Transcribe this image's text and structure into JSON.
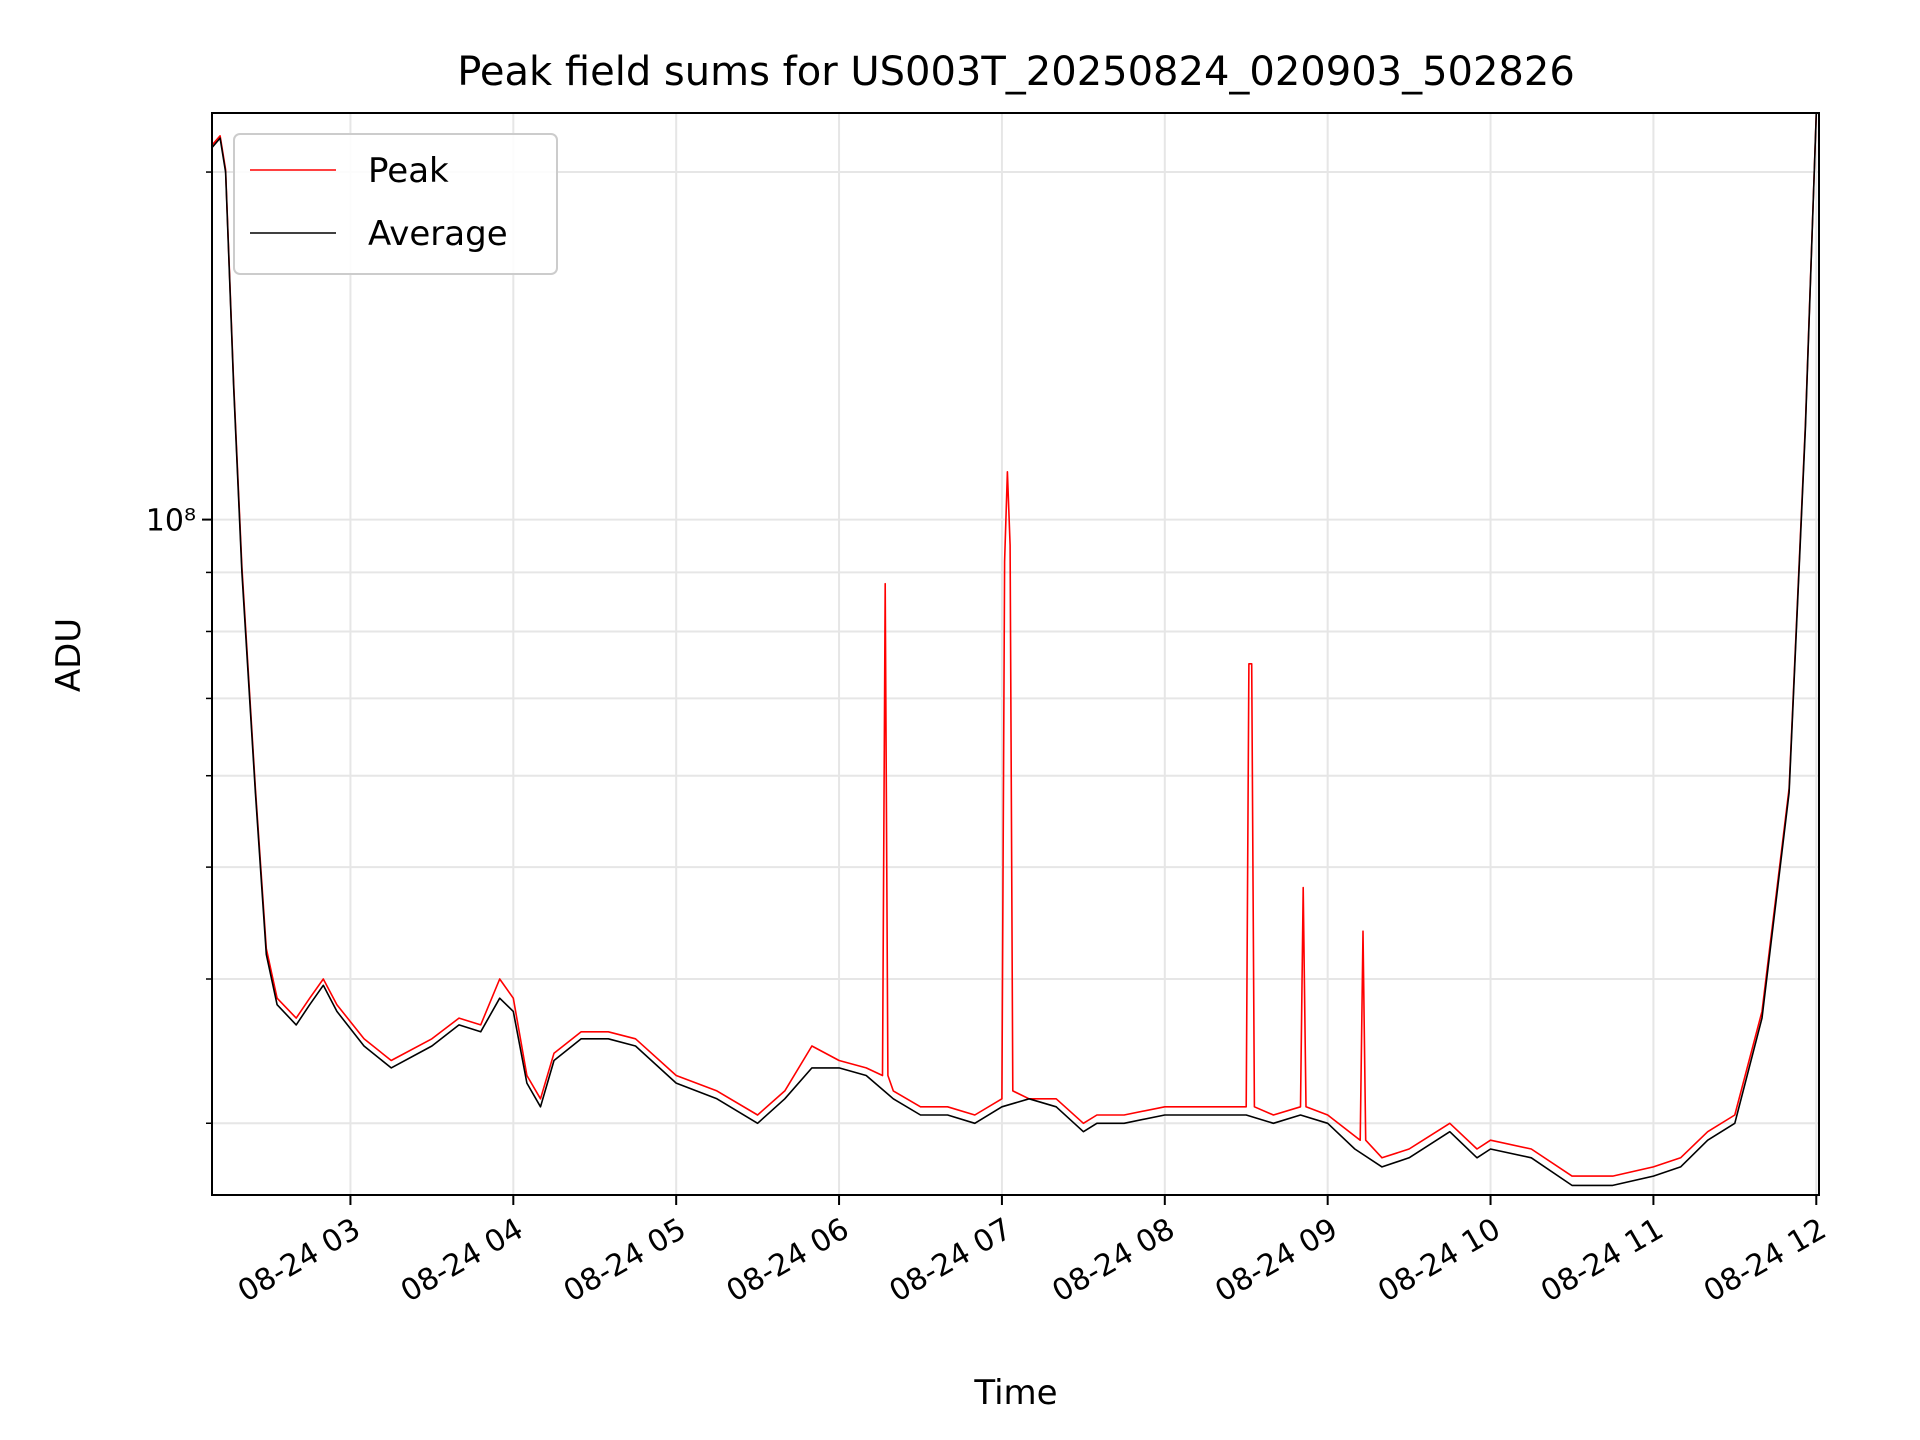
{
  "chart_data": {
    "type": "line",
    "title": "Peak field sums for US003T_20250824_020903_502826",
    "xlabel": "Time",
    "ylabel": "ADU",
    "y_scale": "log",
    "y_tick_labels": [
      {
        "value": 100000000,
        "label": "10⁸"
      }
    ],
    "y_minor_ticks": [
      30000000,
      40000000,
      50000000,
      60000000,
      70000000,
      80000000,
      90000000,
      200000000
    ],
    "ylim": [
      26000000,
      225000000
    ],
    "x_range": [
      "2025-08-24 02:09",
      "2025-08-24 12:01"
    ],
    "x_ticks": [
      {
        "time": "2025-08-24 03:00",
        "label": "08-24 03"
      },
      {
        "time": "2025-08-24 04:00",
        "label": "08-24 04"
      },
      {
        "time": "2025-08-24 05:00",
        "label": "08-24 05"
      },
      {
        "time": "2025-08-24 06:00",
        "label": "08-24 06"
      },
      {
        "time": "2025-08-24 07:00",
        "label": "08-24 07"
      },
      {
        "time": "2025-08-24 08:00",
        "label": "08-24 08"
      },
      {
        "time": "2025-08-24 09:00",
        "label": "08-24 09"
      },
      {
        "time": "2025-08-24 10:00",
        "label": "08-24 10"
      },
      {
        "time": "2025-08-24 11:00",
        "label": "08-24 11"
      },
      {
        "time": "2025-08-24 12:00",
        "label": "08-24 12"
      }
    ],
    "grid": true,
    "legend_position": "upper-left",
    "series": [
      {
        "name": "Average",
        "color": "#000000",
        "x": [
          "2025-08-24 02:09",
          "2025-08-24 02:12",
          "2025-08-24 02:14",
          "2025-08-24 02:17",
          "2025-08-24 02:20",
          "2025-08-24 02:25",
          "2025-08-24 02:29",
          "2025-08-24 02:33",
          "2025-08-24 02:40",
          "2025-08-24 02:45",
          "2025-08-24 02:50",
          "2025-08-24 02:55",
          "2025-08-24 03:05",
          "2025-08-24 03:15",
          "2025-08-24 03:30",
          "2025-08-24 03:40",
          "2025-08-24 03:48",
          "2025-08-24 03:55",
          "2025-08-24 04:00",
          "2025-08-24 04:05",
          "2025-08-24 04:10",
          "2025-08-24 04:15",
          "2025-08-24 04:25",
          "2025-08-24 04:35",
          "2025-08-24 04:45",
          "2025-08-24 05:00",
          "2025-08-24 05:15",
          "2025-08-24 05:30",
          "2025-08-24 05:40",
          "2025-08-24 05:50",
          "2025-08-24 06:00",
          "2025-08-24 06:10",
          "2025-08-24 06:20",
          "2025-08-24 06:30",
          "2025-08-24 06:40",
          "2025-08-24 06:50",
          "2025-08-24 07:00",
          "2025-08-24 07:10",
          "2025-08-24 07:20",
          "2025-08-24 07:30",
          "2025-08-24 07:35",
          "2025-08-24 07:45",
          "2025-08-24 08:00",
          "2025-08-24 08:15",
          "2025-08-24 08:30",
          "2025-08-24 08:40",
          "2025-08-24 08:50",
          "2025-08-24 09:00",
          "2025-08-24 09:10",
          "2025-08-24 09:20",
          "2025-08-24 09:30",
          "2025-08-24 09:45",
          "2025-08-24 09:55",
          "2025-08-24 10:00",
          "2025-08-24 10:15",
          "2025-08-24 10:30",
          "2025-08-24 10:45",
          "2025-08-24 11:00",
          "2025-08-24 11:10",
          "2025-08-24 11:20",
          "2025-08-24 11:30",
          "2025-08-24 11:40",
          "2025-08-24 11:50",
          "2025-08-24 11:56",
          "2025-08-24 12:00"
        ],
        "y": [
          210000000,
          214000000,
          200000000,
          130000000,
          90000000,
          58000000,
          42000000,
          38000000,
          36500000,
          38000000,
          39500000,
          37500000,
          35000000,
          33500000,
          35000000,
          36500000,
          36000000,
          38500000,
          37500000,
          32500000,
          31000000,
          34000000,
          35500000,
          35500000,
          35000000,
          32500000,
          31500000,
          30000000,
          31500000,
          33500000,
          33500000,
          33000000,
          31500000,
          30500000,
          30500000,
          30000000,
          31000000,
          31500000,
          31000000,
          29500000,
          30000000,
          30000000,
          30500000,
          30500000,
          30500000,
          30000000,
          30500000,
          30000000,
          28500000,
          27500000,
          28000000,
          29500000,
          28000000,
          28500000,
          28000000,
          26500000,
          26500000,
          27000000,
          27500000,
          29000000,
          30000000,
          37000000,
          58000000,
          120000000,
          225000000
        ]
      },
      {
        "name": "Peak",
        "color": "#ff0000",
        "x": [
          "2025-08-24 02:09",
          "2025-08-24 02:12",
          "2025-08-24 02:14",
          "2025-08-24 02:17",
          "2025-08-24 02:20",
          "2025-08-24 02:25",
          "2025-08-24 02:29",
          "2025-08-24 02:33",
          "2025-08-24 02:40",
          "2025-08-24 02:45",
          "2025-08-24 02:50",
          "2025-08-24 02:55",
          "2025-08-24 03:05",
          "2025-08-24 03:15",
          "2025-08-24 03:30",
          "2025-08-24 03:40",
          "2025-08-24 03:48",
          "2025-08-24 03:55",
          "2025-08-24 04:00",
          "2025-08-24 04:05",
          "2025-08-24 04:10",
          "2025-08-24 04:15",
          "2025-08-24 04:25",
          "2025-08-24 04:35",
          "2025-08-24 04:45",
          "2025-08-24 05:00",
          "2025-08-24 05:15",
          "2025-08-24 05:30",
          "2025-08-24 05:40",
          "2025-08-24 05:50",
          "2025-08-24 06:00",
          "2025-08-24 06:10",
          "2025-08-24 06:16",
          "2025-08-24 06:17",
          "2025-08-24 06:18",
          "2025-08-24 06:20",
          "2025-08-24 06:30",
          "2025-08-24 06:40",
          "2025-08-24 06:50",
          "2025-08-24 07:00",
          "2025-08-24 07:01",
          "2025-08-24 07:02",
          "2025-08-24 07:03",
          "2025-08-24 07:04",
          "2025-08-24 07:10",
          "2025-08-24 07:20",
          "2025-08-24 07:30",
          "2025-08-24 07:35",
          "2025-08-24 07:45",
          "2025-08-24 08:00",
          "2025-08-24 08:15",
          "2025-08-24 08:30",
          "2025-08-24 08:31",
          "2025-08-24 08:32",
          "2025-08-24 08:33",
          "2025-08-24 08:40",
          "2025-08-24 08:50",
          "2025-08-24 08:51",
          "2025-08-24 08:52",
          "2025-08-24 09:00",
          "2025-08-24 09:12",
          "2025-08-24 09:13",
          "2025-08-24 09:14",
          "2025-08-24 09:20",
          "2025-08-24 09:30",
          "2025-08-24 09:45",
          "2025-08-24 09:55",
          "2025-08-24 10:00",
          "2025-08-24 10:15",
          "2025-08-24 10:30",
          "2025-08-24 10:45",
          "2025-08-24 11:00",
          "2025-08-24 11:10",
          "2025-08-24 11:20",
          "2025-08-24 11:30",
          "2025-08-24 11:40",
          "2025-08-24 11:50",
          "2025-08-24 11:56",
          "2025-08-24 12:00"
        ],
        "y": [
          211000000,
          215000000,
          201000000,
          131000000,
          91000000,
          58500000,
          42500000,
          38500000,
          37000000,
          38500000,
          40000000,
          38000000,
          35500000,
          34000000,
          35500000,
          37000000,
          36500000,
          40000000,
          38500000,
          33000000,
          31500000,
          34500000,
          36000000,
          36000000,
          35500000,
          33000000,
          32000000,
          30500000,
          32000000,
          35000000,
          34000000,
          33500000,
          33000000,
          88000000,
          33000000,
          32000000,
          31000000,
          31000000,
          30500000,
          31500000,
          92000000,
          110000000,
          95000000,
          32000000,
          31500000,
          31500000,
          30000000,
          30500000,
          30500000,
          31000000,
          31000000,
          31000000,
          75000000,
          75000000,
          31000000,
          30500000,
          31000000,
          48000000,
          31000000,
          30500000,
          29000000,
          44000000,
          29000000,
          28000000,
          28500000,
          30000000,
          28500000,
          29000000,
          28500000,
          27000000,
          27000000,
          27500000,
          28000000,
          29500000,
          30500000,
          37500000,
          58500000,
          121000000,
          225000000
        ]
      }
    ]
  }
}
